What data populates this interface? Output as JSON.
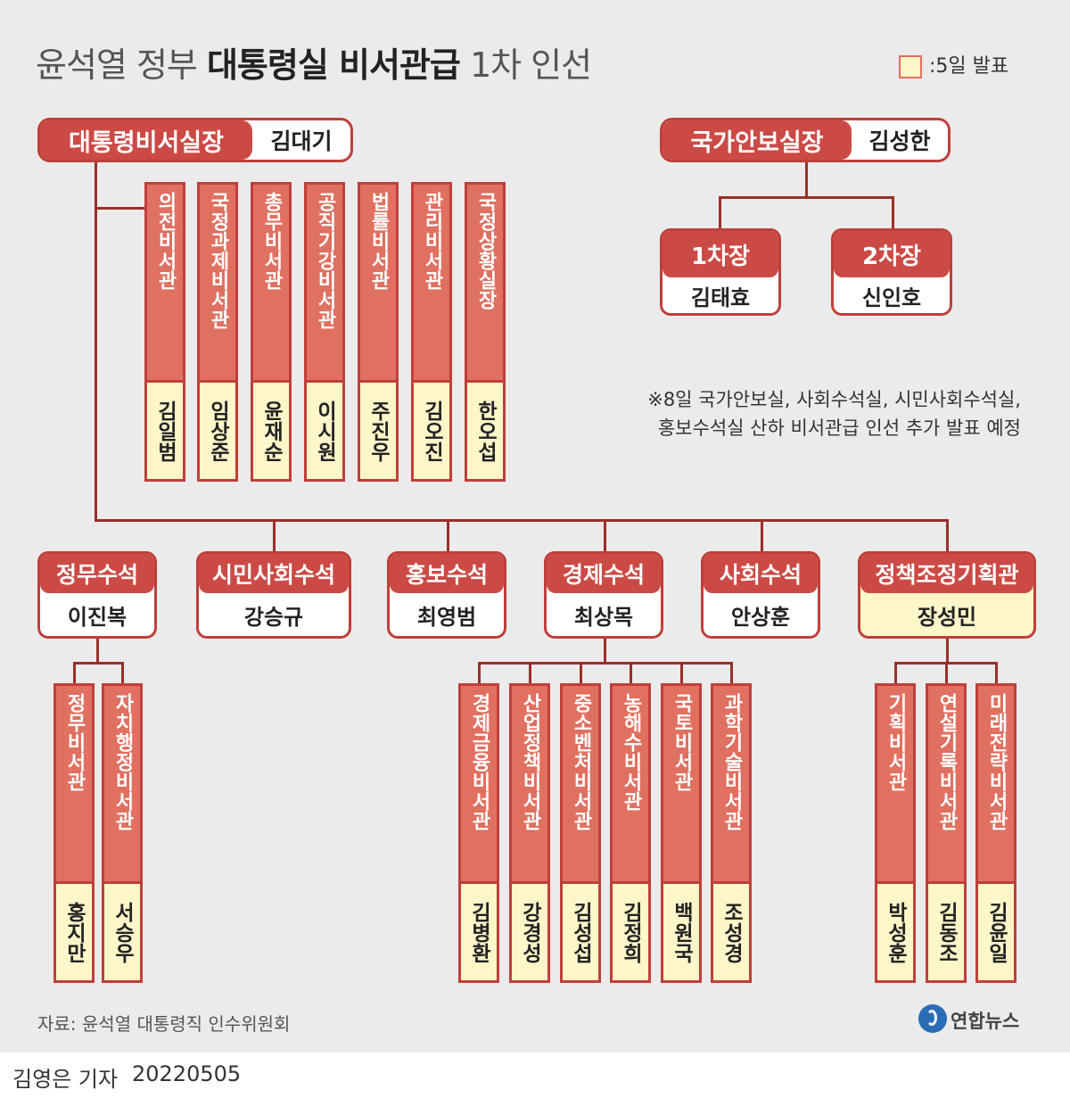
{
  "title": {
    "regular_1": "윤석열 정부 ",
    "bold": "대통령실 비서관급",
    "regular_2": " 1차 인선"
  },
  "legend": {
    "label": ":5일 발표",
    "color": "#fdf6c8"
  },
  "colors": {
    "accent": "#cc4a45",
    "border": "#bf3f3a",
    "vertical_fill": "#e07060",
    "highlight": "#fdf6c8",
    "line": "#9a2f2a",
    "background": "#ebebeb"
  },
  "chief_of_staff": {
    "title": "대통령비서실장",
    "name": "김대기"
  },
  "security_chief": {
    "title": "국가안보실장",
    "name": "김성한"
  },
  "deputies": [
    {
      "title": "1차장",
      "name": "김태효"
    },
    {
      "title": "2차장",
      "name": "신인호"
    }
  ],
  "direct_secretaries": [
    {
      "title": "의전비서관",
      "name": "김일범"
    },
    {
      "title": "국정과제비서관",
      "name": "임상준"
    },
    {
      "title": "총무비서관",
      "name": "윤재순"
    },
    {
      "title": "공직기강비서관",
      "name": "이시원"
    },
    {
      "title": "법률비서관",
      "name": "주진우"
    },
    {
      "title": "관리비서관",
      "name": "김오진"
    },
    {
      "title": "국정상황실장",
      "name": "한오섭"
    }
  ],
  "note": {
    "line1": "※8일 국가안보실, 사회수석실, 시민사회수석실,",
    "line2": "홍보수석실 산하 비서관급 인선 추가 발표 예정"
  },
  "senior_secretaries": [
    {
      "title": "정무수석",
      "name": "이진복"
    },
    {
      "title": "시민사회수석",
      "name": "강승규"
    },
    {
      "title": "홍보수석",
      "name": "최영범"
    },
    {
      "title": "경제수석",
      "name": "최상목"
    },
    {
      "title": "사회수석",
      "name": "안상훈"
    },
    {
      "title": "정책조정기획관",
      "name": "장성민"
    }
  ],
  "political_secretaries": [
    {
      "title": "정무비서관",
      "name": "홍지만"
    },
    {
      "title": "자치행정비서관",
      "name": "서승우"
    }
  ],
  "economic_secretaries": [
    {
      "title": "경제금융비서관",
      "name": "김병환"
    },
    {
      "title": "산업정책비서관",
      "name": "강경성"
    },
    {
      "title": "중소벤처비서관",
      "name": "김성섭"
    },
    {
      "title": "농해수비서관",
      "name": "김정희"
    },
    {
      "title": "국토비서관",
      "name": "백원국"
    },
    {
      "title": "과학기술비서관",
      "name": "조성경"
    }
  ],
  "policy_secretaries": [
    {
      "title": "기획비서관",
      "name": "박성훈"
    },
    {
      "title": "연설기록비서관",
      "name": "김동조"
    },
    {
      "title": "미래전략비서관",
      "name": "김윤일"
    }
  ],
  "source": "자료: 윤석열 대통령직 인수위원회",
  "brand": "연합뉴스",
  "byline": "김영은 기자",
  "date": "20220505"
}
